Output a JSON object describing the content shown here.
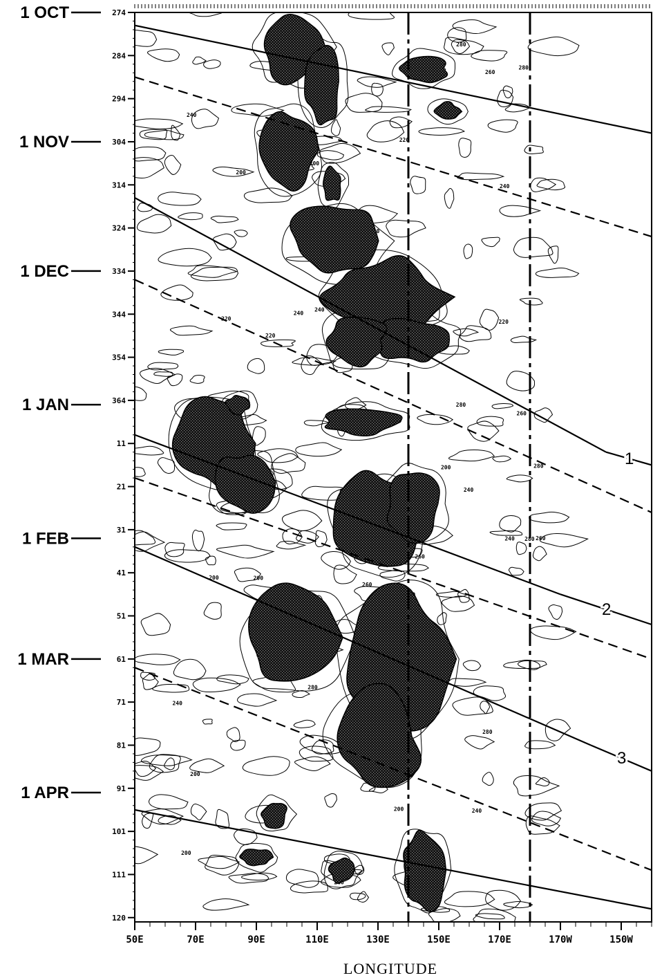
{
  "chart_data": {
    "type": "heatmap",
    "description_kind": "time-longitude contour diagram",
    "xlabel": "LONGITUDE",
    "ylabel": "",
    "x_ticks": [
      "50E",
      "70E",
      "90E",
      "110E",
      "130E",
      "150E",
      "170E",
      "170W",
      "150W"
    ],
    "x_tick_lon_east": [
      50,
      70,
      90,
      110,
      130,
      150,
      170,
      190,
      210
    ],
    "x_range_lon_east": [
      50,
      220
    ],
    "y_day_ticks": [
      "274",
      "284",
      "294",
      "304",
      "314",
      "324",
      "334",
      "344",
      "354",
      "364",
      "11",
      "21",
      "31",
      "41",
      "51",
      "61",
      "71",
      "81",
      "91",
      "101",
      "111",
      "120"
    ],
    "y_range_seq_days": [
      0,
      211
    ],
    "month_labels": [
      {
        "label": "1 OCT",
        "seq_day": 0
      },
      {
        "label": "1 NOV",
        "seq_day": 30
      },
      {
        "label": "1 DEC",
        "seq_day": 60
      },
      {
        "label": "1 JAN",
        "seq_day": 91
      },
      {
        "label": "1 FEB",
        "seq_day": 122
      },
      {
        "label": "1 MAR",
        "seq_day": 150
      },
      {
        "label": "1 APR",
        "seq_day": 181
      }
    ],
    "vertical_dashed_lines_lon_east": [
      140,
      180
    ],
    "contour_levels": [
      "220",
      "200",
      "240",
      "260",
      "280"
    ],
    "shaded": "<220",
    "wave_lines": [
      {
        "label": "",
        "style": "solid",
        "points": [
          [
            50,
            3
          ],
          [
            220,
            28
          ]
        ]
      },
      {
        "label": "",
        "style": "dashed",
        "points": [
          [
            50,
            15
          ],
          [
            220,
            52
          ]
        ]
      },
      {
        "label": "",
        "style": "solid",
        "points": [
          [
            50,
            43
          ],
          [
            205,
            102
          ]
        ]
      },
      {
        "label": "1",
        "style": "solid",
        "points": [
          [
            205,
            102
          ],
          [
            220,
            105
          ]
        ]
      },
      {
        "label": "",
        "style": "dashed",
        "points": [
          [
            50,
            62
          ],
          [
            220,
            116
          ]
        ]
      },
      {
        "label": "",
        "style": "solid",
        "points": [
          [
            50,
            98
          ],
          [
            190,
            135
          ]
        ]
      },
      {
        "label": "2",
        "style": "solid",
        "points": [
          [
            190,
            135
          ],
          [
            220,
            142
          ]
        ]
      },
      {
        "label": "",
        "style": "dashed",
        "points": [
          [
            50,
            108
          ],
          [
            220,
            150
          ]
        ]
      },
      {
        "label": "",
        "style": "solid",
        "points": [
          [
            50,
            124
          ],
          [
            200,
            170
          ]
        ]
      },
      {
        "label": "3",
        "style": "solid",
        "points": [
          [
            200,
            170
          ],
          [
            220,
            176
          ]
        ]
      },
      {
        "label": "",
        "style": "dashed",
        "points": [
          [
            50,
            152
          ],
          [
            220,
            199
          ]
        ]
      },
      {
        "label": "",
        "style": "solid",
        "points": [
          [
            50,
            185
          ],
          [
            220,
            208
          ]
        ]
      }
    ],
    "shaded_regions": [
      {
        "name": "oct-110E",
        "lon": 102,
        "day": 8,
        "rlon": 10,
        "rday": 8
      },
      {
        "name": "oct-112E",
        "lon": 112,
        "day": 16,
        "rlon": 6,
        "rday": 9
      },
      {
        "name": "oct-141E",
        "lon": 145,
        "day": 13,
        "rlon": 8,
        "rday": 3
      },
      {
        "name": "oct-145E",
        "lon": 153,
        "day": 23,
        "rlon": 4,
        "rday": 2
      },
      {
        "name": "nov-100E",
        "lon": 100,
        "day": 32,
        "rlon": 9,
        "rday": 9
      },
      {
        "name": "nov-113E",
        "lon": 115,
        "day": 40,
        "rlon": 3,
        "rday": 4
      },
      {
        "name": "dec-110E",
        "lon": 116,
        "day": 53,
        "rlon": 15,
        "rday": 8
      },
      {
        "name": "dec-130E",
        "lon": 132,
        "day": 66,
        "rlon": 20,
        "rday": 9
      },
      {
        "name": "dec-140E",
        "lon": 142,
        "day": 76,
        "rlon": 14,
        "rday": 5
      },
      {
        "name": "dec-125E",
        "lon": 123,
        "day": 76,
        "rlon": 10,
        "rday": 6
      },
      {
        "name": "jan-75E",
        "lon": 76,
        "day": 100,
        "rlon": 12,
        "rday": 10
      },
      {
        "name": "jan-85E",
        "lon": 86,
        "day": 109,
        "rlon": 10,
        "rday": 7
      },
      {
        "name": "jan-125E",
        "lon": 125,
        "day": 95,
        "rlon": 13,
        "rday": 3
      },
      {
        "name": "jan-83E",
        "lon": 84,
        "day": 91,
        "rlon": 4,
        "rday": 2
      },
      {
        "name": "feb-125E",
        "lon": 130,
        "day": 118,
        "rlon": 14,
        "rday": 11
      },
      {
        "name": "feb-140E",
        "lon": 142,
        "day": 114,
        "rlon": 9,
        "rday": 8
      },
      {
        "name": "feb-110E",
        "lon": 103,
        "day": 145,
        "rlon": 17,
        "rday": 12
      },
      {
        "name": "feb-135E",
        "lon": 136,
        "day": 150,
        "rlon": 18,
        "rday": 16
      },
      {
        "name": "mar-125E",
        "lon": 130,
        "day": 168,
        "rlon": 14,
        "rday": 11
      },
      {
        "name": "apr-95E",
        "lon": 96,
        "day": 186,
        "rlon": 4,
        "rday": 3
      },
      {
        "name": "apr-100E",
        "lon": 90,
        "day": 196,
        "rlon": 5,
        "rday": 2
      },
      {
        "name": "apr-120E",
        "lon": 118,
        "day": 199,
        "rlon": 4,
        "rday": 3
      },
      {
        "name": "apr-150E",
        "lon": 145,
        "day": 199,
        "rlon": 7,
        "rday": 9
      }
    ]
  }
}
